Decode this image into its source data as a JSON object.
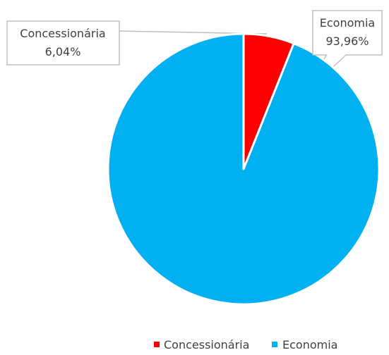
{
  "chart_data": {
    "type": "pie",
    "title": "",
    "categories": [
      "Concessionária",
      "Economia"
    ],
    "values": [
      6.04,
      93.96
    ],
    "labels": [
      "6,04%",
      "93,96%"
    ],
    "colors": [
      "#FF0000",
      "#00B0F0"
    ],
    "legend": "bottom"
  }
}
